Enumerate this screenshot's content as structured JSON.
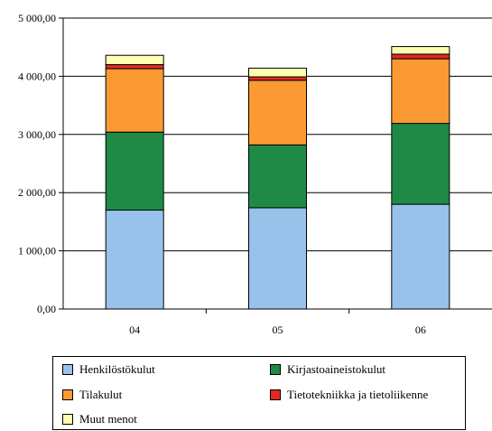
{
  "chart_data": {
    "type": "bar",
    "stacked": true,
    "title": "",
    "xlabel": "",
    "ylabel": "",
    "categories": [
      "04",
      "05",
      "06"
    ],
    "ylim": [
      0,
      5000
    ],
    "yticks": [
      "0,00",
      "1 000,00",
      "2 000,00",
      "3 000,00",
      "4 000,00",
      "5 000,00"
    ],
    "ytick_values": [
      0,
      1000,
      2000,
      3000,
      4000,
      5000
    ],
    "grid": true,
    "legend_position": "bottom",
    "series": [
      {
        "name": "Henkilöstökulut",
        "color": "#99c2eb",
        "values": [
          1700,
          1740,
          1800
        ]
      },
      {
        "name": "Kirjastoaineistokulut",
        "color": "#1e8a45",
        "values": [
          1340,
          1080,
          1390
        ]
      },
      {
        "name": "Tilakulut",
        "color": "#fb9a33",
        "values": [
          1090,
          1110,
          1110
        ]
      },
      {
        "name": "Tietotekniikka ja tietoliikenne",
        "color": "#e22a20",
        "values": [
          70,
          60,
          80
        ]
      },
      {
        "name": "Muut menot",
        "color": "#ffffb3",
        "values": [
          160,
          150,
          130
        ]
      }
    ]
  }
}
